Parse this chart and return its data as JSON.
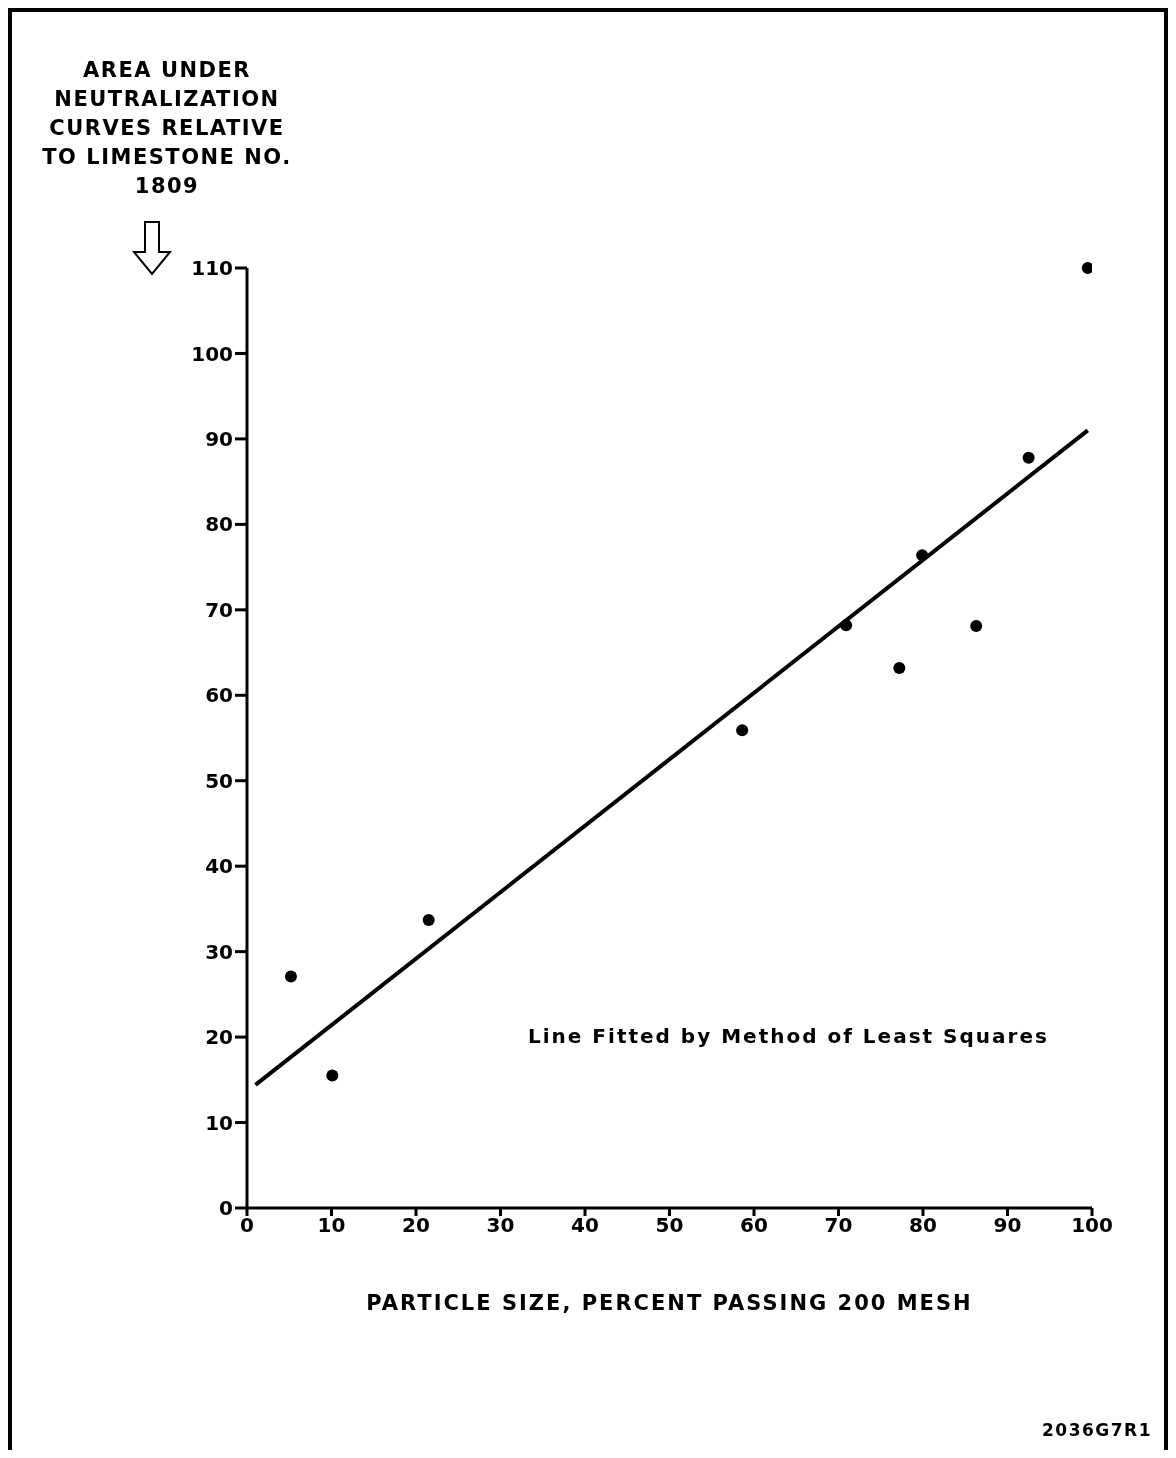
{
  "chart_data": {
    "type": "scatter",
    "ylabel": "AREA UNDER NEUTRALIZATION CURVES RELATIVE TO LIMESTONE NO. 1809",
    "xlabel": "PARTICLE SIZE, PERCENT PASSING 200 MESH",
    "annotations": [
      "Line Fitted by Method of Least Squares",
      "2036G7R1"
    ],
    "series": [
      {
        "type": "scatter",
        "color": "#000000",
        "marker": "circle",
        "x": [
          5.2,
          10.1,
          21.5,
          58.6,
          70.9,
          77.2,
          79.9,
          86.3,
          92.5,
          99.5
        ],
        "values": [
          27.1,
          15.5,
          33.7,
          55.9,
          68.2,
          63.2,
          76.4,
          68.1,
          87.8,
          110
        ]
      },
      {
        "type": "line",
        "color": "#000000",
        "marker": "none",
        "x": [
          1,
          99.5
        ],
        "values": [
          14.4,
          91.0
        ]
      }
    ],
    "xlim": [
      0,
      100
    ],
    "xticks": [
      0,
      10,
      20,
      30,
      40,
      50,
      60,
      70,
      80,
      90,
      100
    ],
    "ylim": [
      0,
      110
    ],
    "yticks": [
      0,
      10,
      20,
      30,
      40,
      50,
      60,
      70,
      80,
      90,
      100,
      110
    ]
  }
}
